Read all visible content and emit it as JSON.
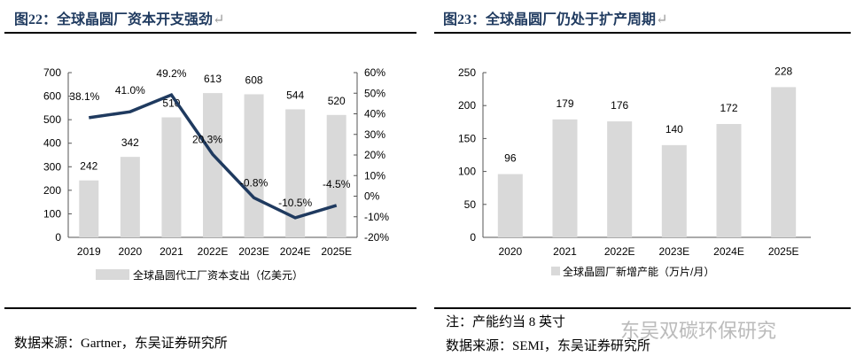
{
  "left": {
    "title": "图22：全球晶圆厂资本开支强劲",
    "source": "数据来源：Gartner，东吴证券研究所"
  },
  "right": {
    "title": "图23：全球晶圆厂仍处于扩产周期",
    "note": "注：产能约当 8 英寸",
    "source": "数据来源：SEMI，东吴证券研究所"
  },
  "watermark": "东吴双碳环保研究",
  "chart_data": [
    {
      "type": "bar+line",
      "categories": [
        "2019",
        "2020",
        "2021",
        "2022E",
        "2023E",
        "2024E",
        "2025E"
      ],
      "series": [
        {
          "name": "全球晶圆代工厂资本支出（亿美元）",
          "type": "bar",
          "axis": "left",
          "values": [
            242,
            342,
            510,
            613,
            608,
            544,
            520
          ],
          "color": "#d9d9d9"
        },
        {
          "type": "line",
          "axis": "right",
          "values": [
            38.1,
            41.0,
            49.2,
            20.3,
            -0.8,
            -10.5,
            -4.5
          ],
          "color": "#1f3a5f"
        }
      ],
      "ylim": [
        0,
        700
      ],
      "yticks": [
        0,
        100,
        200,
        300,
        400,
        500,
        600,
        700
      ],
      "y2lim": [
        -20,
        60
      ],
      "y2ticks": [
        "-20%",
        "-10%",
        "0%",
        "10%",
        "20%",
        "30%",
        "40%",
        "50%",
        "60%"
      ],
      "legend": "bottom"
    },
    {
      "type": "bar",
      "categories": [
        "2020",
        "2021",
        "2022E",
        "2023E",
        "2024E",
        "2025E"
      ],
      "series": [
        {
          "name": "全球晶圆厂新增产能（万片/月）",
          "values": [
            96,
            179,
            176,
            140,
            172,
            228
          ],
          "color": "#d9d9d9"
        }
      ],
      "ylim": [
        0,
        250
      ],
      "yticks": [
        0,
        50,
        100,
        150,
        200,
        250
      ],
      "legend": "bottom"
    }
  ]
}
